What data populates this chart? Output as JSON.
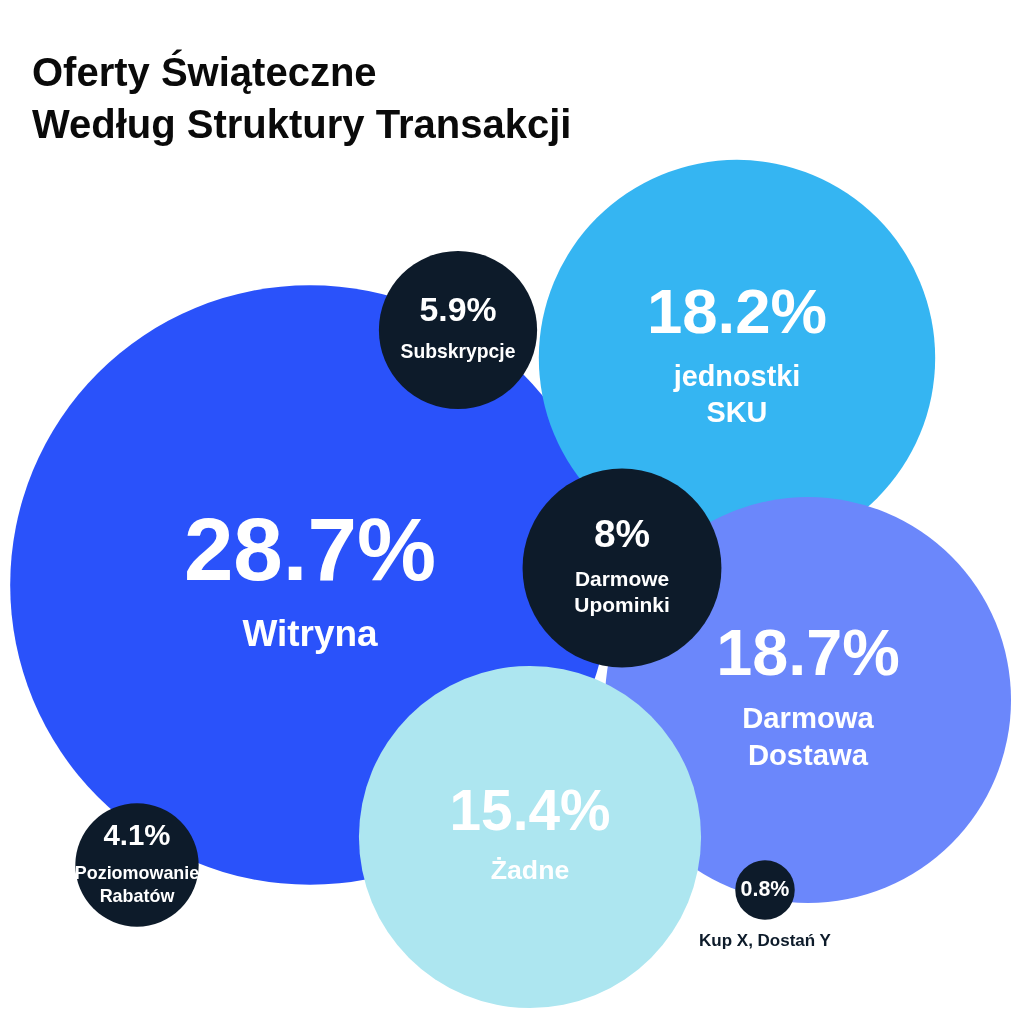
{
  "chart_data": {
    "type": "other",
    "title": "Oferty Świąteczne\nWedług Struktury Transakcji",
    "categories": [
      "Witryna",
      "jednostki SKU",
      "Darmowa Dostawa",
      "Żadne",
      "Subskrypcje",
      "Darmowe Upominki",
      "Poziomowanie Rabatów",
      "Kup X, Dostań Y"
    ],
    "values": [
      28.7,
      18.2,
      18.7,
      15.4,
      5.9,
      8,
      4.1,
      0.8
    ],
    "value_labels": [
      "28.7%",
      "18.2%",
      "18.7%",
      "15.4%",
      "5.9%",
      "8%",
      "4.1%",
      "0.8%"
    ],
    "colors": [
      "#2a52fa",
      "#35b5f2",
      "#6b87fb",
      "#ade6f0",
      "#0d1b2a",
      "#0d1b2a",
      "#0d1b2a",
      "#0d1b2a"
    ]
  }
}
